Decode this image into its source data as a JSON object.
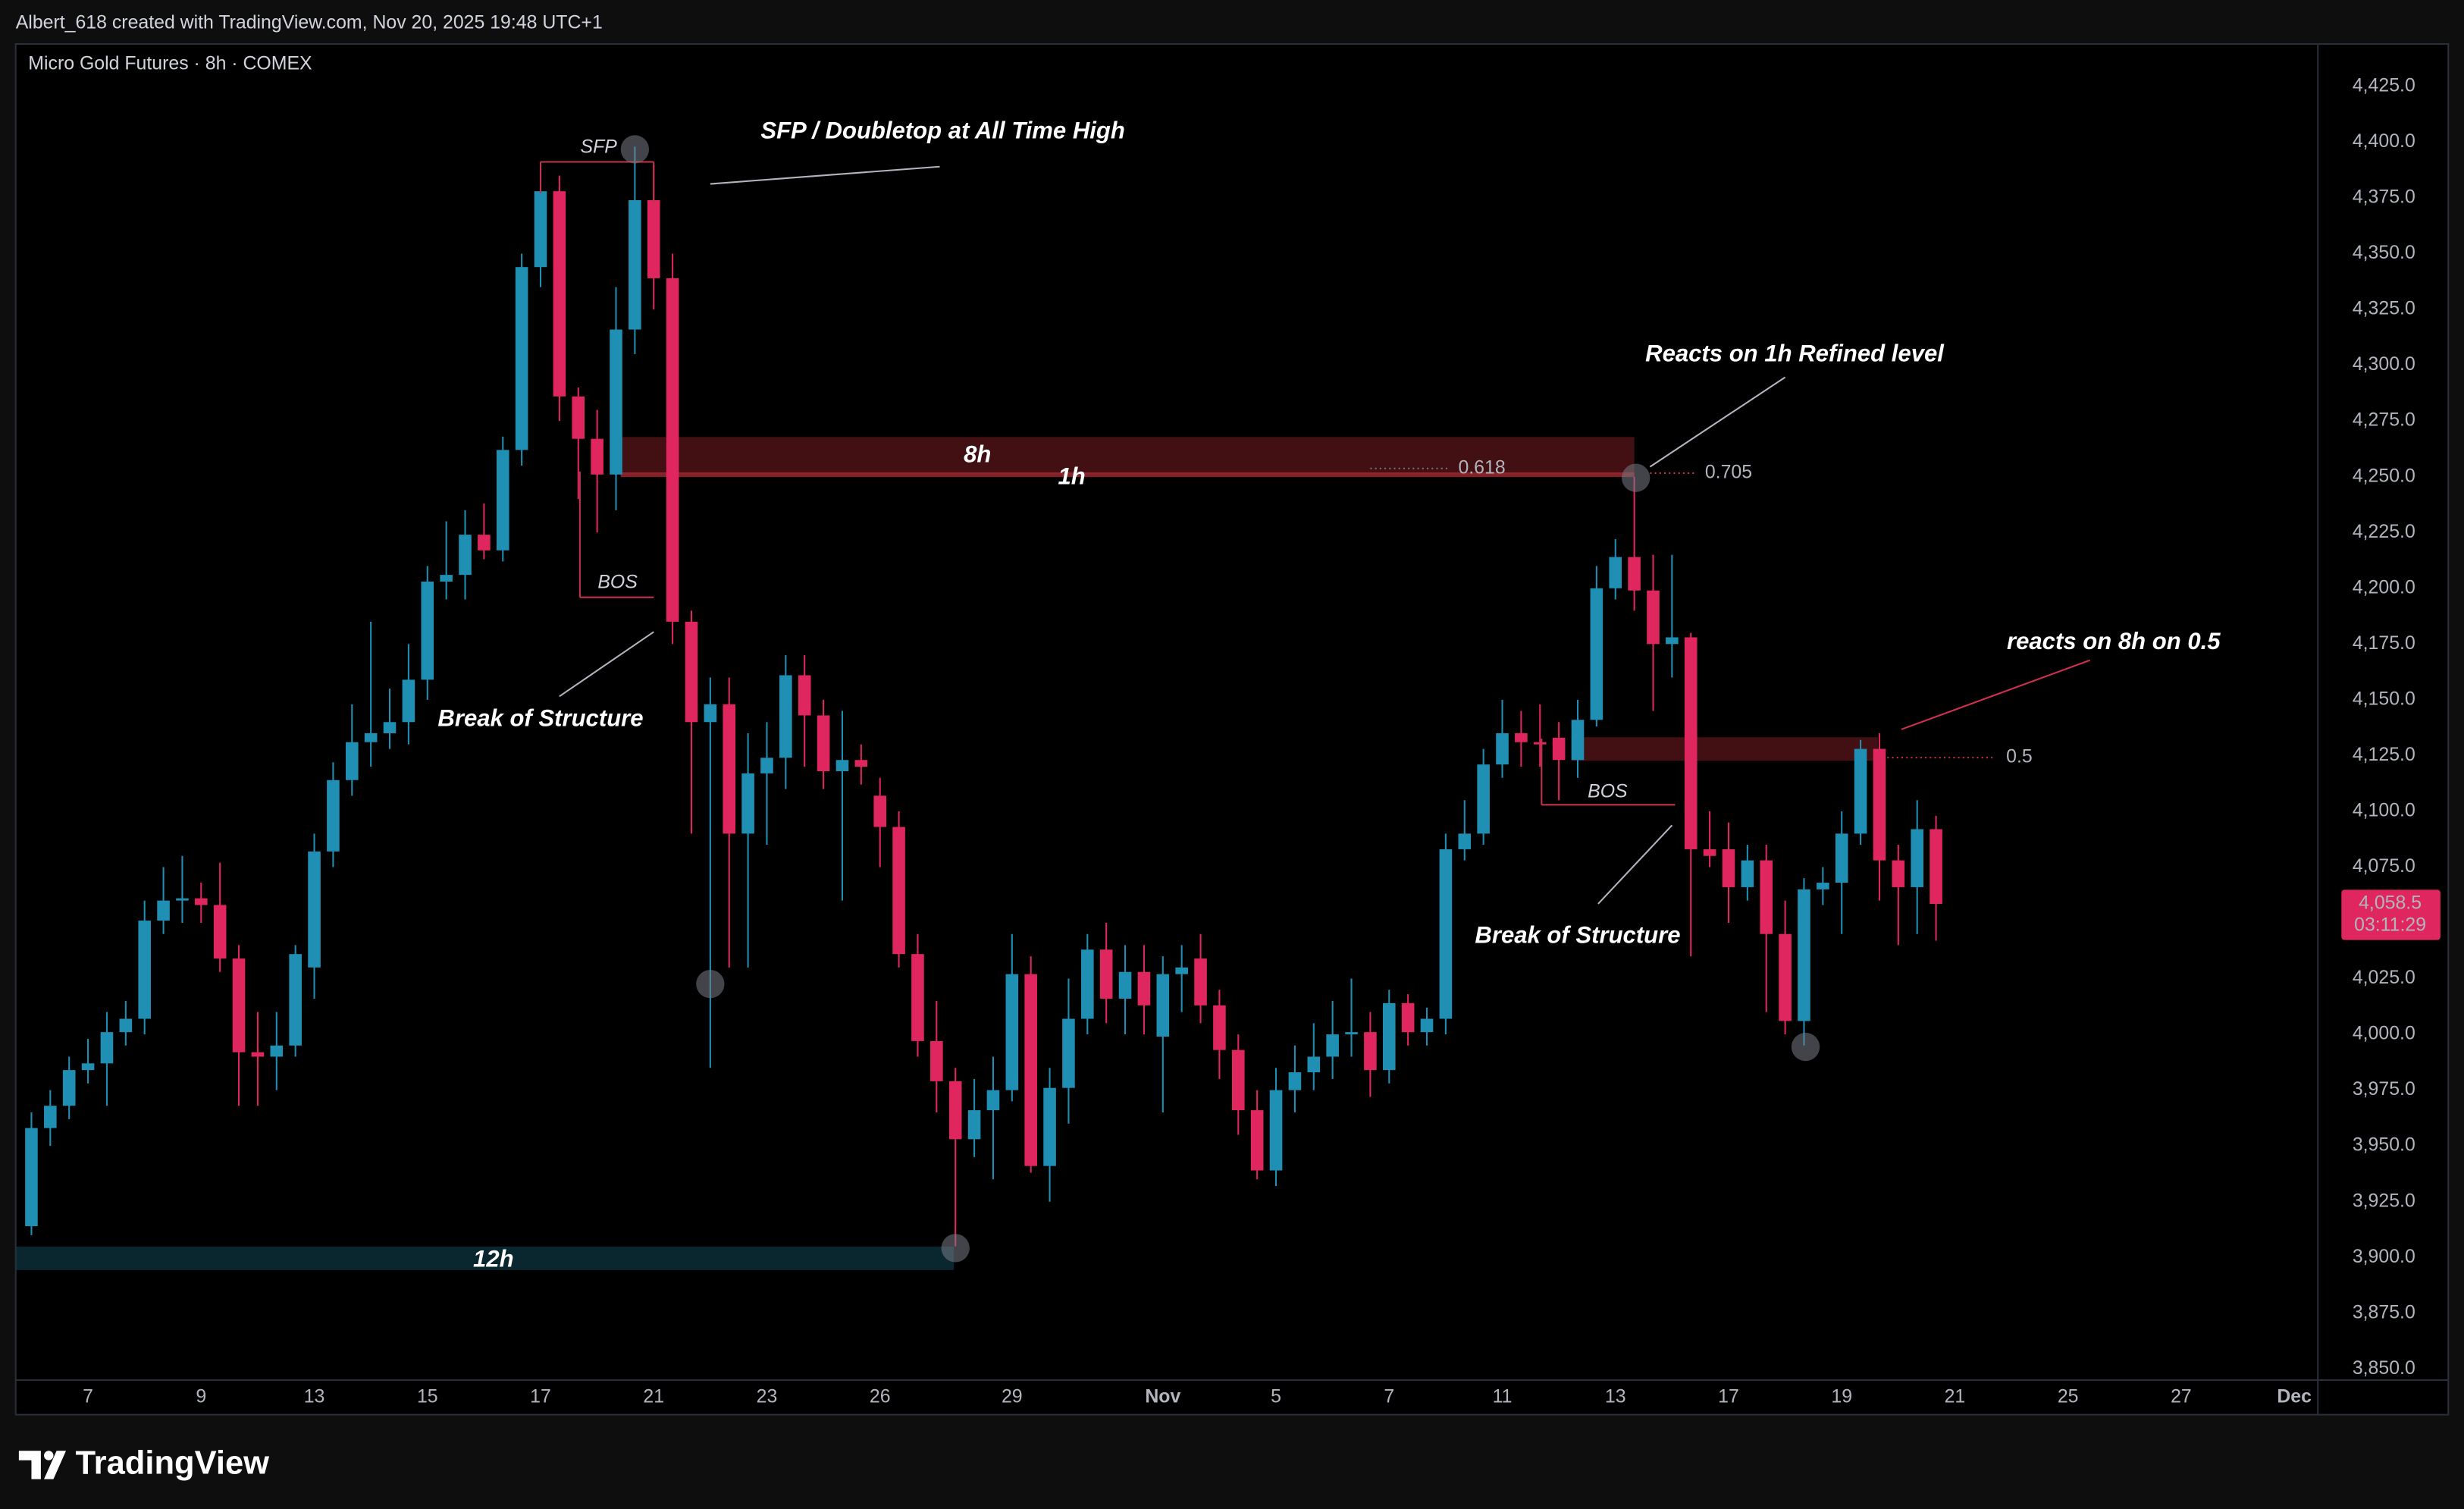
{
  "header": "Albert_618 created with TradingView.com, Nov 20, 2025 19:48 UTC+1",
  "logo": "TradingView",
  "chart_data": {
    "type": "candlestick",
    "title": "Micro Gold Futures · 8h · COMEX",
    "up_color": "#1f8fb4",
    "down_color": "#e0265f",
    "grid": false,
    "categories": [
      null,
      null,
      null,
      "7",
      null,
      null,
      null,
      null,
      null,
      "9",
      null,
      null,
      null,
      null,
      null,
      "13",
      null,
      null,
      null,
      null,
      null,
      "15",
      null,
      null,
      null,
      null,
      null,
      "17",
      null,
      null,
      null,
      null,
      null,
      "21",
      null,
      null,
      null,
      null,
      null,
      "23",
      null,
      null,
      null,
      null,
      null,
      "26",
      null,
      null,
      null,
      null,
      null,
      null,
      "29",
      null,
      null,
      null,
      null,
      null,
      null,
      null,
      "Nov",
      null,
      null,
      null,
      null,
      null,
      "5",
      null,
      null,
      null,
      null,
      null,
      "7",
      null,
      null,
      null,
      null,
      null,
      "11",
      null,
      null,
      null,
      null,
      null,
      "13",
      null,
      null,
      null,
      null,
      null,
      "17",
      null,
      null,
      null,
      null,
      null,
      "19",
      null,
      null,
      null,
      null,
      null,
      "21",
      null,
      null,
      null,
      null,
      null,
      "25",
      null,
      null,
      null,
      null,
      null,
      "27",
      null,
      null,
      null,
      null,
      null,
      "Dec"
    ],
    "open": [
      3914,
      3958,
      3968,
      3984,
      3987,
      4001,
      4007,
      4051,
      4060,
      4061,
      4058,
      4034,
      3992,
      3990,
      3995,
      4030,
      4082,
      4114,
      4131,
      4135,
      4140,
      4159,
      4203,
      4206,
      4224,
      4217,
      4262,
      4344,
      4378,
      4286,
      4267,
      4251,
      4316,
      4374,
      4339,
      4185,
      4140,
      4148,
      4090,
      4117,
      4124,
      4161,
      4143,
      4118,
      4123,
      4107,
      4093,
      4036,
      3997,
      3979,
      3953,
      3966,
      3975,
      4027,
      3941,
      3976,
      4007,
      4038,
      4016,
      4028,
      3999,
      4027,
      4034,
      4013,
      3993,
      3966,
      3939,
      3975,
      3983,
      3990,
      4000,
      4001,
      3984,
      4014,
      4001,
      4007,
      4083,
      4090,
      4121,
      4135,
      4131,
      4133,
      4123,
      4141,
      4200,
      4214,
      4199,
      4175,
      4178,
      4083,
      4083,
      4066,
      4078,
      4045,
      4006,
      4065,
      4068,
      4090,
      4128,
      4078,
      4066,
      4092,
      null,
      null,
      null,
      null,
      null,
      null,
      null,
      null,
      null,
      null,
      null,
      null,
      null,
      null,
      null,
      null,
      null,
      null,
      null
    ],
    "high": [
      3965,
      3975,
      3990,
      3998,
      4010,
      4015,
      4060,
      4075,
      4080,
      4068,
      4077,
      4040,
      4010,
      4010,
      4040,
      4090,
      4122,
      4148,
      4185,
      4155,
      4175,
      4210,
      4230,
      4235,
      4238,
      4268,
      4350,
      4390,
      4385,
      4290,
      4280,
      4335,
      4398,
      4390,
      4350,
      4190,
      4160,
      4160,
      4135,
      4140,
      4170,
      4170,
      4150,
      4145,
      4130,
      4115,
      4100,
      4045,
      4015,
      3985,
      3980,
      3990,
      4045,
      4035,
      3985,
      4025,
      4045,
      4050,
      4040,
      4040,
      4035,
      4040,
      4045,
      4020,
      4000,
      3975,
      3985,
      3995,
      4005,
      4015,
      4025,
      4010,
      4020,
      4018,
      4012,
      4090,
      4105,
      4128,
      4150,
      4145,
      4148,
      4140,
      4150,
      4210,
      4222,
      4250,
      4215,
      4215,
      4180,
      4100,
      4095,
      4085,
      4085,
      4060,
      4070,
      4075,
      4100,
      4132,
      4135,
      4085,
      4105,
      4098,
      null,
      null,
      null,
      null,
      null,
      null,
      null,
      null,
      null,
      null,
      null,
      null,
      null,
      null,
      null,
      null,
      null,
      null,
      null
    ],
    "low": [
      3910,
      3950,
      3962,
      3978,
      3968,
      3995,
      4000,
      4045,
      4050,
      4050,
      4028,
      3968,
      3968,
      3975,
      3990,
      4016,
      4075,
      4107,
      4120,
      4128,
      4130,
      4150,
      4195,
      4195,
      4213,
      4212,
      4255,
      4335,
      4275,
      4240,
      4225,
      4235,
      4305,
      4325,
      4175,
      4090,
      3985,
      4030,
      4030,
      4085,
      4110,
      4120,
      4110,
      4060,
      4112,
      4075,
      4030,
      3990,
      3965,
      3905,
      3945,
      3935,
      3970,
      3938,
      3925,
      3960,
      4000,
      4005,
      4000,
      4000,
      3965,
      4010,
      4005,
      3980,
      3955,
      3935,
      3932,
      3965,
      3975,
      3980,
      3990,
      3972,
      3978,
      3995,
      3995,
      4000,
      4078,
      4085,
      4115,
      4120,
      4120,
      4105,
      4115,
      4138,
      4195,
      4190,
      4145,
      4160,
      4035,
      4075,
      4050,
      4060,
      4010,
      4000,
      3995,
      4058,
      4045,
      4085,
      4060,
      4040,
      4045,
      4042,
      null,
      null,
      null,
      null,
      null,
      null,
      null,
      null,
      null,
      null,
      null,
      null,
      null,
      null,
      null,
      null,
      null,
      null,
      null
    ],
    "close": [
      3958,
      3968,
      3984,
      3987,
      4001,
      4007,
      4051,
      4060,
      4061,
      4058,
      4034,
      3992,
      3990,
      3995,
      4036,
      4082,
      4114,
      4131,
      4135,
      4140,
      4159,
      4203,
      4206,
      4224,
      4217,
      4262,
      4344,
      4378,
      4286,
      4267,
      4251,
      4316,
      4374,
      4339,
      4185,
      4140,
      4148,
      4090,
      4117,
      4124,
      4161,
      4143,
      4118,
      4123,
      4120,
      4093,
      4036,
      3997,
      3979,
      3953,
      3966,
      3975,
      4027,
      3941,
      3976,
      4007,
      4038,
      4016,
      4028,
      4013,
      4027,
      4030,
      4013,
      3993,
      3966,
      3939,
      3975,
      3983,
      3990,
      4000,
      4001,
      3984,
      4014,
      4001,
      4007,
      4083,
      4090,
      4121,
      4135,
      4131,
      4130,
      4123,
      4141,
      4200,
      4214,
      4199,
      4175,
      4178,
      4083,
      4080,
      4066,
      4078,
      4045,
      4006,
      4065,
      4068,
      4090,
      4128,
      4078,
      4066,
      4092,
      4058.5,
      null,
      null,
      null,
      null,
      null,
      null,
      null,
      null,
      null,
      null,
      null,
      null,
      null,
      null,
      null,
      null,
      null,
      null,
      null
    ],
    "last_price_label": "4,058.5",
    "countdown": "03:11:29",
    "ylim": [
      3845,
      4444
    ],
    "yticks": [
      {
        "value": 3850,
        "label": "3,850.0"
      },
      {
        "value": 3875,
        "label": "3,875.0"
      },
      {
        "value": 3900,
        "label": "3,900.0"
      },
      {
        "value": 3925,
        "label": "3,925.0"
      },
      {
        "value": 3950,
        "label": "3,950.0"
      },
      {
        "value": 3975,
        "label": "3,975.0"
      },
      {
        "value": 4000,
        "label": "4,000.0"
      },
      {
        "value": 4025,
        "label": "4,025.0"
      },
      {
        "value": 4050,
        "label": "4,050.0"
      },
      {
        "value": 4075,
        "label": "4,075.0"
      },
      {
        "value": 4100,
        "label": "4,100.0"
      },
      {
        "value": 4125,
        "label": "4,125.0"
      },
      {
        "value": 4150,
        "label": "4,150.0"
      },
      {
        "value": 4175,
        "label": "4,175.0"
      },
      {
        "value": 4200,
        "label": "4,200.0"
      },
      {
        "value": 4225,
        "label": "4,225.0"
      },
      {
        "value": 4250,
        "label": "4,250.0"
      },
      {
        "value": 4275,
        "label": "4,275.0"
      },
      {
        "value": 4300,
        "label": "4,300.0"
      },
      {
        "value": 4325,
        "label": "4,325.0"
      },
      {
        "value": 4350,
        "label": "4,350.0"
      },
      {
        "value": 4375,
        "label": "4,375.0"
      },
      {
        "value": 4400,
        "label": "4,400.0"
      },
      {
        "value": 4425,
        "label": "4,425.0"
      }
    ],
    "annotations": [
      "SFP / Doubletop at All Time High",
      "Break of Structure",
      "Reacts on 1h Refined level",
      "Break of Structure",
      "reacts on 8h on 0.5"
    ],
    "zone_labels": [
      "8h",
      "1h",
      "12h"
    ],
    "structure_labels": [
      "SFP",
      "BOS",
      "BOS"
    ],
    "fib_levels": [
      0.618,
      0.705,
      0.5
    ]
  }
}
